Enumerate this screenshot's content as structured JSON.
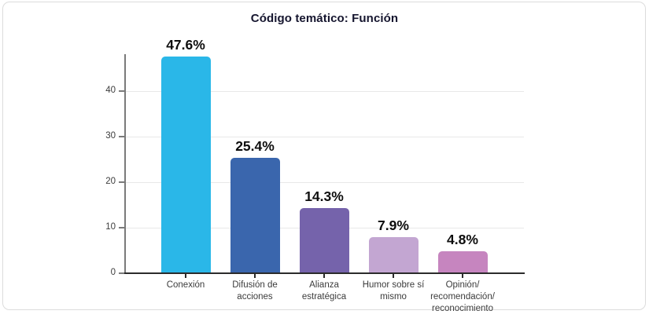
{
  "chart_data": {
    "type": "bar",
    "title": "Código temático: Función",
    "categories": [
      "Conexión",
      "Difusión de\nacciones",
      "Alianza\nestratégica",
      "Humor sobre sí\nmismo",
      "Opinión/\nrecomendación/\nreconocimiento"
    ],
    "values": [
      47.6,
      25.4,
      14.3,
      7.9,
      4.8
    ],
    "value_labels": [
      "47.6%",
      "25.4%",
      "14.3%",
      "7.9%",
      "4.8%"
    ],
    "bar_colors": [
      "#2ab7e8",
      "#3a66ad",
      "#7563ab",
      "#c3a6d2",
      "#c685bf"
    ],
    "y_ticks": [
      0,
      10,
      20,
      30,
      40
    ],
    "ylim": [
      0,
      48
    ],
    "xlabel": "",
    "ylabel": "",
    "grid": "horizontal",
    "legend": "none"
  },
  "colors": {
    "grid": "#e8e8e8",
    "y_axis": "#7a7a7a",
    "x_axis": "#2b2b2b",
    "card_border": "#dcdcdc",
    "title_text": "#15152e",
    "tick_text": "#3c3c3c",
    "value_text": "#0d0d0d"
  }
}
